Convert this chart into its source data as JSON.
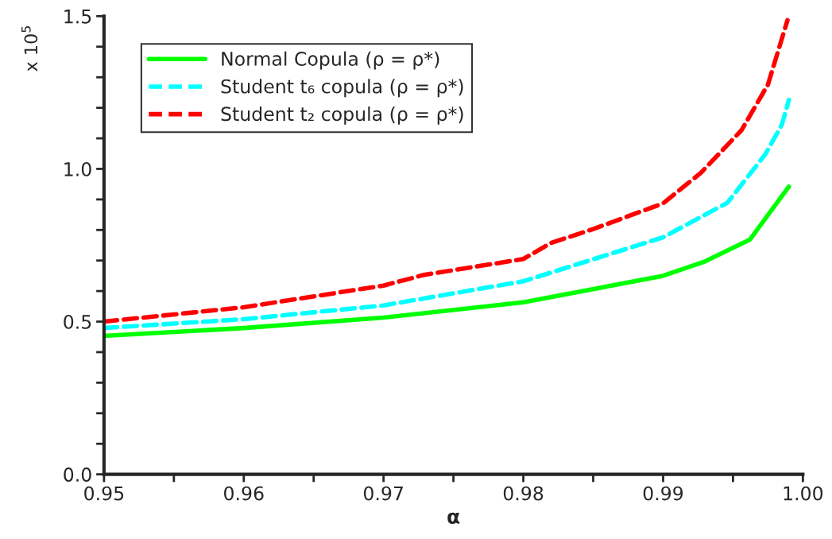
{
  "chart_data": {
    "type": "line",
    "xlabel": "α",
    "ylabel": "x 10$^{5}$",
    "xlim": [
      0.95,
      1.0
    ],
    "ylim": [
      0.0,
      1.5
    ],
    "xticks": [
      0.95,
      {
        "value": 0.955,
        "label": null
      },
      0.96,
      {
        "value": 0.965,
        "label": null
      },
      0.97,
      {
        "value": 0.975,
        "label": null
      },
      0.98,
      {
        "value": 0.985,
        "label": null
      },
      0.99,
      {
        "value": 0.995,
        "label": null
      },
      {
        "value": 1.0,
        "label": "1.00"
      }
    ],
    "yticks": [
      {
        "value": 0.0,
        "label": "0.0"
      },
      {
        "value": 0.1,
        "label": null
      },
      {
        "value": 0.2,
        "label": null
      },
      {
        "value": 0.3,
        "label": null
      },
      {
        "value": 0.4,
        "label": null
      },
      0.5,
      {
        "value": 0.6,
        "label": null
      },
      {
        "value": 0.7,
        "label": null
      },
      {
        "value": 0.8,
        "label": null
      },
      {
        "value": 0.9,
        "label": null
      },
      {
        "value": 1.0,
        "label": "1.0"
      },
      {
        "value": 1.1,
        "label": null
      },
      {
        "value": 1.2,
        "label": null
      },
      {
        "value": 1.3,
        "label": null
      },
      {
        "value": 1.4,
        "label": null
      },
      1.5
    ],
    "grid": false,
    "legend": "top left",
    "marker": "none",
    "series": [
      {
        "name": "Normal Copula (ρ = ρ*)",
        "color": "#00ff00",
        "line_style": "solid",
        "x": [
          0.95,
          0.96,
          0.97,
          0.98,
          0.99,
          0.993,
          0.9962,
          0.9976,
          0.999
        ],
        "values": [
          0.453,
          0.479,
          0.513,
          0.563,
          0.65,
          0.697,
          0.768,
          0.855,
          0.942
        ]
      },
      {
        "name": "Student t₆ copula (ρ = ρ*)",
        "color": "#00ffff",
        "line_style": "dashed",
        "x": [
          0.95,
          0.96,
          0.97,
          0.98,
          0.99,
          0.9946,
          0.9973,
          0.9985,
          0.999
        ],
        "values": [
          0.479,
          0.508,
          0.553,
          0.632,
          0.776,
          0.889,
          1.047,
          1.145,
          1.226
        ]
      },
      {
        "name": "Student t₂ copula (ρ = ρ*)",
        "color": "#ff0000",
        "line_style": "dashed",
        "x": [
          0.95,
          0.96,
          0.97,
          0.9729,
          0.98,
          0.982,
          0.985,
          0.99,
          0.9927,
          0.9956,
          0.9975,
          0.9989
        ],
        "values": [
          0.5,
          0.547,
          0.618,
          0.653,
          0.705,
          0.758,
          0.803,
          0.887,
          0.987,
          1.126,
          1.276,
          1.487
        ]
      }
    ]
  }
}
